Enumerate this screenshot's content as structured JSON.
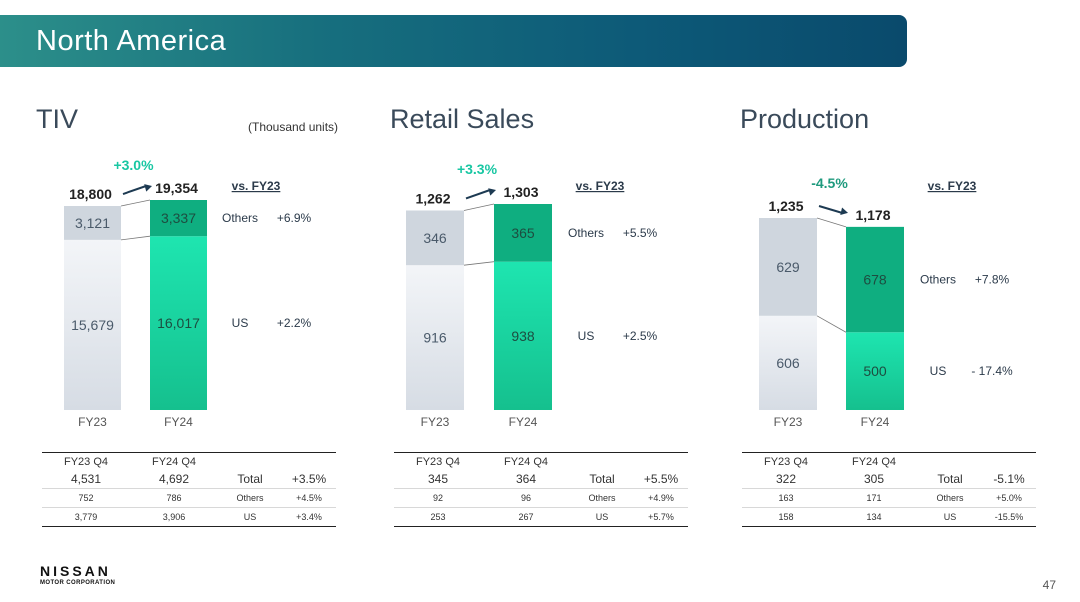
{
  "header": {
    "title": "North America"
  },
  "unit_note": "(Thousand units)",
  "page_number": "47",
  "logo": {
    "name": "NISSAN",
    "sub": "MOTOR CORPORATION"
  },
  "colors": {
    "gray_light": "#e7eaef",
    "gray_mid": "#cfd6de",
    "green_bright": "#1ee5b0",
    "green_mid": "#16c491",
    "green_dark": "#0fae80",
    "pct_pos": "#19c7a3",
    "pct_neg": "#1f9a7e"
  },
  "chart_data": [
    {
      "type": "bar",
      "title": "TIV",
      "stacking": "stacked",
      "categories": [
        "FY23",
        "FY24"
      ],
      "totals": [
        "18,800",
        "19,354"
      ],
      "total_values": [
        18800,
        19354
      ],
      "change": "+3.0%",
      "vs_label": "vs. FY23",
      "series": [
        {
          "name": "US",
          "values": [
            15679,
            16017
          ],
          "labels": [
            "15,679",
            "16,017"
          ],
          "change": "+2.2%"
        },
        {
          "name": "Others",
          "values": [
            3121,
            3337
          ],
          "labels": [
            "3,121",
            "3,337"
          ],
          "change": "+6.9%"
        }
      ],
      "quarter_table": {
        "headers": [
          "FY23 Q4",
          "FY24 Q4"
        ],
        "rows": [
          {
            "a": "4,531",
            "b": "4,692",
            "label": "Total",
            "change": "+3.5%"
          },
          {
            "a": "752",
            "b": "786",
            "label": "Others",
            "change": "+4.5%"
          },
          {
            "a": "3,779",
            "b": "3,906",
            "label": "US",
            "change": "+3.4%"
          }
        ]
      }
    },
    {
      "type": "bar",
      "title": "Retail Sales",
      "stacking": "stacked",
      "categories": [
        "FY23",
        "FY24"
      ],
      "totals": [
        "1,262",
        "1,303"
      ],
      "total_values": [
        1262,
        1303
      ],
      "change": "+3.3%",
      "vs_label": "vs. FY23",
      "series": [
        {
          "name": "US",
          "values": [
            916,
            938
          ],
          "labels": [
            "916",
            "938"
          ],
          "change": "+2.5%"
        },
        {
          "name": "Others",
          "values": [
            346,
            365
          ],
          "labels": [
            "346",
            "365"
          ],
          "change": "+5.5%"
        }
      ],
      "quarter_table": {
        "headers": [
          "FY23 Q4",
          "FY24 Q4"
        ],
        "rows": [
          {
            "a": "345",
            "b": "364",
            "label": "Total",
            "change": "+5.5%"
          },
          {
            "a": "92",
            "b": "96",
            "label": "Others",
            "change": "+4.9%"
          },
          {
            "a": "253",
            "b": "267",
            "label": "US",
            "change": "+5.7%"
          }
        ]
      }
    },
    {
      "type": "bar",
      "title": "Production",
      "stacking": "stacked",
      "categories": [
        "FY23",
        "FY24"
      ],
      "totals": [
        "1,235",
        "1,178"
      ],
      "total_values": [
        1235,
        1178
      ],
      "change": "-4.5%",
      "vs_label": "vs. FY23",
      "series": [
        {
          "name": "US",
          "values": [
            606,
            500
          ],
          "labels": [
            "606",
            "500"
          ],
          "change": "- 17.4%"
        },
        {
          "name": "Others",
          "values": [
            629,
            678
          ],
          "labels": [
            "629",
            "678"
          ],
          "change": "+7.8%"
        }
      ],
      "quarter_table": {
        "headers": [
          "FY23 Q4",
          "FY24 Q4"
        ],
        "rows": [
          {
            "a": "322",
            "b": "305",
            "label": "Total",
            "change": "-5.1%"
          },
          {
            "a": "163",
            "b": "171",
            "label": "Others",
            "change": "+5.0%"
          },
          {
            "a": "158",
            "b": "134",
            "label": "US",
            "change": "-15.5%"
          }
        ]
      }
    }
  ]
}
